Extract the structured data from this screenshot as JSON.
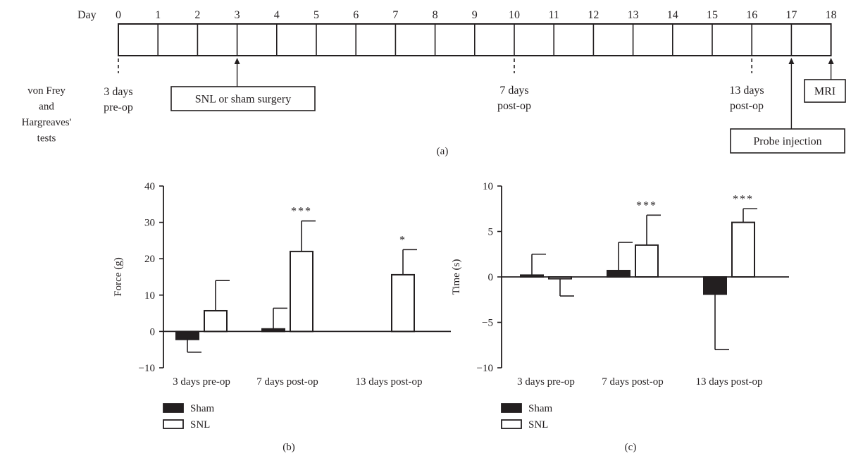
{
  "timeline": {
    "day_label": "Day",
    "days": [
      "0",
      "1",
      "2",
      "3",
      "4",
      "5",
      "6",
      "7",
      "8",
      "9",
      "10",
      "11",
      "12",
      "13",
      "14",
      "15",
      "16",
      "17",
      "18"
    ],
    "left_label_lines": [
      "von Frey",
      "and",
      "Hargreaves'",
      "tests"
    ],
    "markers": [
      {
        "day": 0,
        "style": "dashed",
        "lines": [
          "3 days",
          "pre-op"
        ]
      },
      {
        "day": 3,
        "style": "arrow",
        "boxed": true,
        "lines": [
          "SNL or sham surgery"
        ]
      },
      {
        "day": 10,
        "style": "dashed",
        "lines": [
          "7 days",
          "post-op"
        ]
      },
      {
        "day": 16,
        "style": "dashed",
        "lines": [
          "13 days",
          "post-op"
        ]
      },
      {
        "day": 17,
        "style": "arrow",
        "boxed": true,
        "lines": [
          "Probe injection"
        ]
      },
      {
        "day": 18,
        "style": "arrow",
        "boxed": true,
        "lines": [
          "MRI"
        ]
      }
    ],
    "panel_label": "(a)"
  },
  "chart_data": [
    {
      "type": "bar",
      "panel_label": "(b)",
      "ylabel": "Force (g)",
      "ylim": [
        -10,
        40
      ],
      "yticks": [
        -10,
        0,
        10,
        20,
        30,
        40
      ],
      "categories": [
        "3 days pre-op",
        "7 days post-op",
        "13 days post-op"
      ],
      "series": [
        {
          "name": "Sham",
          "fill": "#231f20",
          "values": [
            -2.2,
            0.7,
            0
          ],
          "errors": [
            3.5,
            5.7,
            0
          ]
        },
        {
          "name": "SNL",
          "fill": "#ffffff",
          "values": [
            5.7,
            22.0,
            15.6
          ],
          "errors": [
            8.3,
            8.4,
            6.9
          ]
        }
      ],
      "annotations": [
        {
          "category": 1,
          "series": 1,
          "text": "***"
        },
        {
          "category": 2,
          "series": 1,
          "text": "*"
        }
      ],
      "legend": "bottom-left",
      "grid": false
    },
    {
      "type": "bar",
      "panel_label": "(c)",
      "ylabel": "Time (s)",
      "ylim": [
        -10,
        10
      ],
      "yticks": [
        -10,
        -5,
        0,
        5,
        10
      ],
      "categories": [
        "3 days pre-op",
        "7 days post-op",
        "13 days post-op"
      ],
      "series": [
        {
          "name": "Sham",
          "fill": "#231f20",
          "values": [
            0.2,
            0.7,
            -1.9
          ],
          "errors": [
            2.3,
            3.1,
            6.1
          ]
        },
        {
          "name": "SNL",
          "fill": "#ffffff",
          "values": [
            -0.2,
            3.5,
            6.0
          ],
          "errors": [
            1.9,
            3.3,
            1.5
          ]
        }
      ],
      "annotations": [
        {
          "category": 1,
          "series": 1,
          "text": "***"
        },
        {
          "category": 2,
          "series": 1,
          "text": "***"
        }
      ],
      "legend": "bottom-left",
      "grid": false
    }
  ]
}
